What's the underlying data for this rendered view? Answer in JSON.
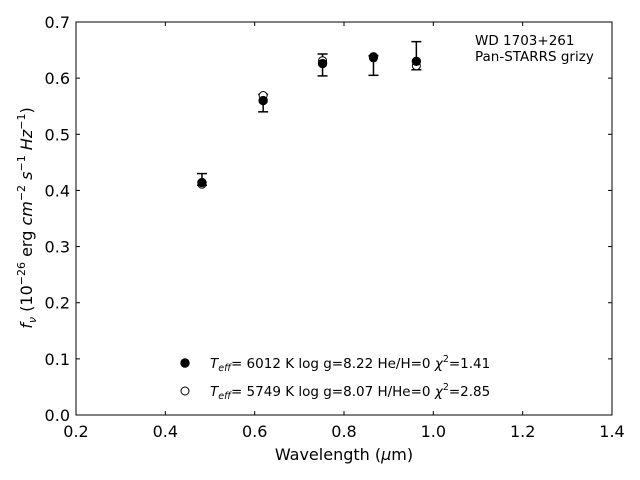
{
  "chart_data": {
    "type": "scatter",
    "xlabel": "Wavelength (μm)",
    "ylabel": "f_ν (10^-26 erg cm^-2 s^-1 Hz^-1)",
    "xlim": [
      0.2,
      1.4
    ],
    "ylim": [
      0.0,
      0.7
    ],
    "xticks": [
      "0.2",
      "0.4",
      "0.6",
      "0.8",
      "1.0",
      "1.2",
      "1.4"
    ],
    "yticks": [
      "0.0",
      "0.1",
      "0.2",
      "0.3",
      "0.4",
      "0.5",
      "0.6",
      "0.7"
    ],
    "grid": false,
    "annotation": [
      "WD 1703+261",
      "Pan-STARRS grizy"
    ],
    "observed": {
      "x": [
        0.482,
        0.619,
        0.752,
        0.866,
        0.962
      ],
      "y": [
        0.417,
        0.556,
        0.624,
        0.622,
        0.63
      ],
      "err_low": [
        0.008,
        0.016,
        0.02,
        0.017,
        0.015
      ],
      "err_high": [
        0.013,
        0.015,
        0.019,
        0.018,
        0.035
      ]
    },
    "series": [
      {
        "name": "T_eff= 6012 K log g=8.22 He/H=0 χ²=1.41",
        "marker": "filled-circle",
        "x": [
          0.482,
          0.619,
          0.752,
          0.866,
          0.962
        ],
        "y": [
          0.414,
          0.56,
          0.626,
          0.638,
          0.63
        ]
      },
      {
        "name": "T_eff= 5749 K log g=8.07 H/He=0 χ²=2.85",
        "marker": "open-circle",
        "x": [
          0.482,
          0.619,
          0.752,
          0.866,
          0.962
        ],
        "y": [
          0.411,
          0.569,
          0.631,
          0.636,
          0.622
        ]
      }
    ],
    "legend": [
      {
        "marker": "filled-circle",
        "text_pre": "T",
        "text_sub": "eff",
        "text_main": "=  6012 K  log g=8.22  He/H=0  ",
        "chi": "χ",
        "chi_sup": "2",
        "chi_val": "=1.41"
      },
      {
        "marker": "open-circle",
        "text_pre": "T",
        "text_sub": "eff",
        "text_main": "=  5749 K  log g=8.07  H/He=0  ",
        "chi": "χ",
        "chi_sup": "2",
        "chi_val": "=2.85"
      }
    ],
    "legend_position": "bottom-center"
  }
}
